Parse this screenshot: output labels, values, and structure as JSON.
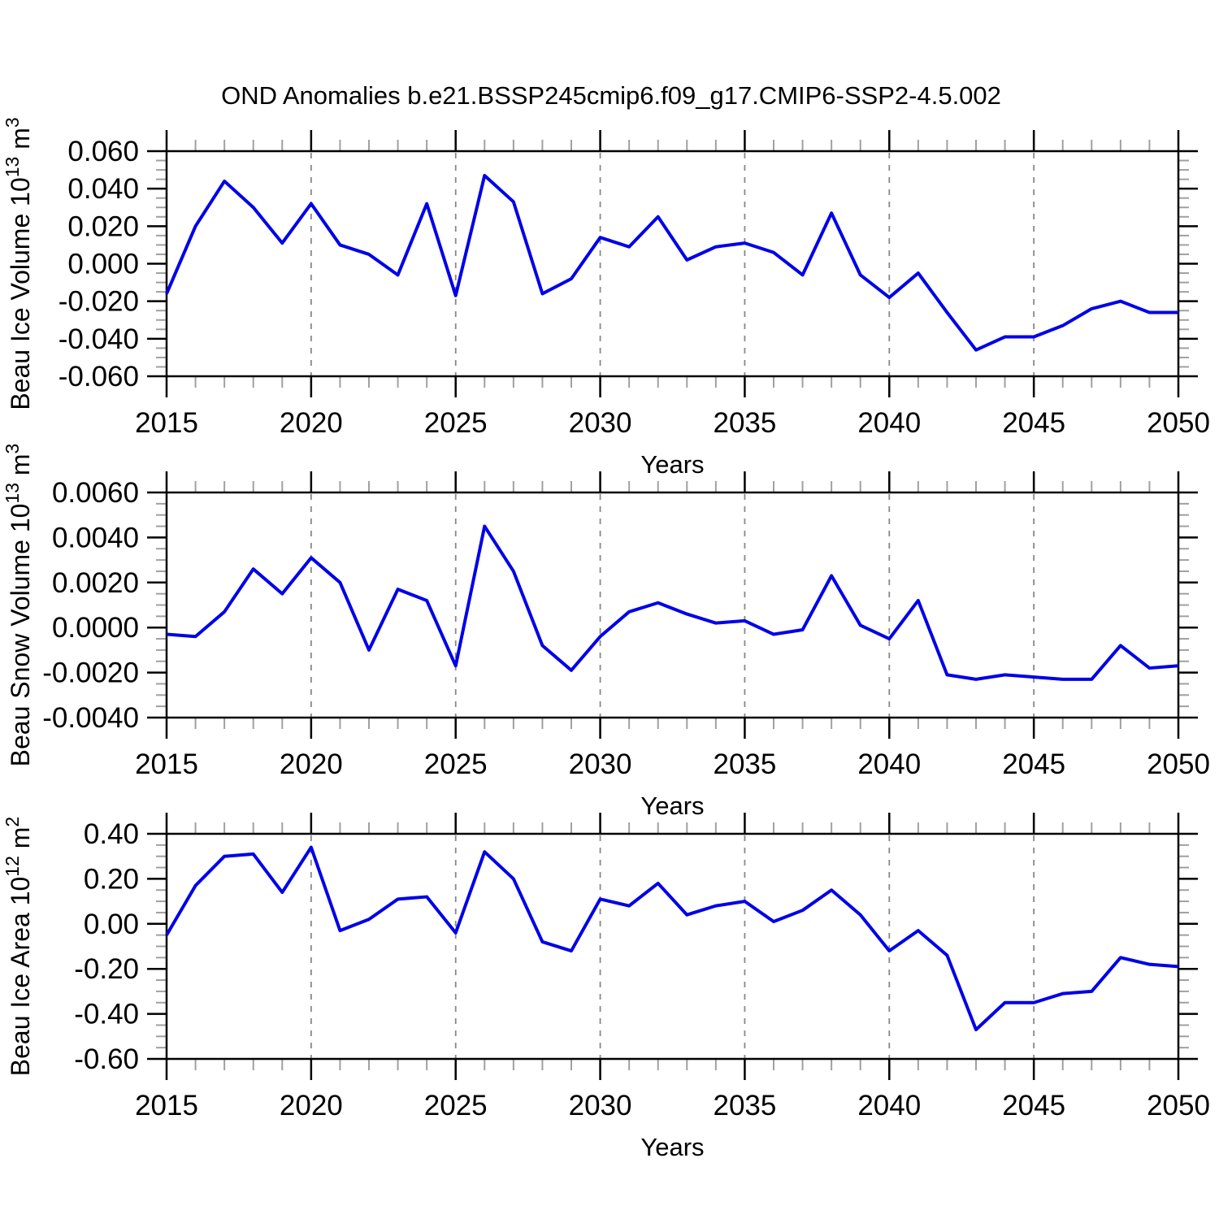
{
  "title": "OND Anomalies b.e21.BSSP245cmip6.f09_g17.CMIP6-SSP2-4.5.002",
  "colors": {
    "line": "#0000e8",
    "frame": "#000000",
    "major_tick": "#000000",
    "minor_tick": "#a0a0a0",
    "grid": "#888888",
    "text": "#000000",
    "background": "#ffffff"
  },
  "x_axis": {
    "label": "Years",
    "min": 2015,
    "max": 2050,
    "major_tick_step": 5,
    "minor_tick_step": 1,
    "tick_labels": [
      "2015",
      "2020",
      "2025",
      "2030",
      "2035",
      "2040",
      "2045",
      "2050"
    ],
    "grid_line_years": [
      2020,
      2025,
      2030,
      2035,
      2040,
      2045
    ]
  },
  "chart_data": [
    {
      "type": "line",
      "name": "beau-ice-volume",
      "ylabel": {
        "text": "Beau Ice Volume 10",
        "exp": "13",
        "unit": "m",
        "unit_exp": "3"
      },
      "y_axis": {
        "min": -0.06,
        "max": 0.06,
        "major_step": 0.02,
        "minor_step": 0.005,
        "tick_labels": [
          "0.060",
          "0.040",
          "0.020",
          "0.000",
          "-0.020",
          "-0.040",
          "-0.060"
        ]
      },
      "x": [
        2015,
        2016,
        2017,
        2018,
        2019,
        2020,
        2021,
        2022,
        2023,
        2024,
        2025,
        2026,
        2027,
        2028,
        2029,
        2030,
        2031,
        2032,
        2033,
        2034,
        2035,
        2036,
        2037,
        2038,
        2039,
        2040,
        2041,
        2042,
        2043,
        2044,
        2045,
        2046,
        2047,
        2048,
        2049,
        2050
      ],
      "values": [
        -0.016,
        0.02,
        0.044,
        0.03,
        0.011,
        0.032,
        0.01,
        0.005,
        -0.006,
        0.032,
        -0.017,
        0.047,
        0.033,
        -0.016,
        -0.008,
        0.014,
        0.009,
        0.025,
        0.002,
        0.009,
        0.011,
        0.006,
        -0.006,
        0.027,
        -0.006,
        -0.018,
        -0.005,
        -0.026,
        -0.046,
        -0.039,
        -0.039,
        -0.033,
        -0.024,
        -0.02,
        -0.026,
        -0.026
      ]
    },
    {
      "type": "line",
      "name": "beau-snow-volume",
      "ylabel": {
        "text": "Beau Snow Volume 10",
        "exp": "13",
        "unit": "m",
        "unit_exp": "3"
      },
      "y_axis": {
        "min": -0.004,
        "max": 0.006,
        "major_step": 0.002,
        "minor_step": 0.0005,
        "tick_labels": [
          "0.0060",
          "0.0040",
          "0.0020",
          "0.0000",
          "-0.0020",
          "-0.0040"
        ]
      },
      "x": [
        2015,
        2016,
        2017,
        2018,
        2019,
        2020,
        2021,
        2022,
        2023,
        2024,
        2025,
        2026,
        2027,
        2028,
        2029,
        2030,
        2031,
        2032,
        2033,
        2034,
        2035,
        2036,
        2037,
        2038,
        2039,
        2040,
        2041,
        2042,
        2043,
        2044,
        2045,
        2046,
        2047,
        2048,
        2049,
        2050
      ],
      "values": [
        -0.0003,
        -0.0004,
        0.0007,
        0.0026,
        0.0015,
        0.0031,
        0.002,
        -0.001,
        0.0017,
        0.0012,
        -0.0017,
        0.0045,
        0.0025,
        -0.0008,
        -0.0019,
        -0.0004,
        0.0007,
        0.0011,
        0.0006,
        0.0002,
        0.0003,
        -0.0003,
        -0.0001,
        0.0023,
        0.0001,
        -0.0005,
        0.0012,
        -0.0021,
        -0.0023,
        -0.0021,
        -0.0022,
        -0.0023,
        -0.0023,
        -0.0008,
        -0.0018,
        -0.0017
      ]
    },
    {
      "type": "line",
      "name": "beau-ice-area",
      "ylabel": {
        "text": "Beau Ice Area 10",
        "exp": "12",
        "unit": "m",
        "unit_exp": "2"
      },
      "y_axis": {
        "min": -0.6,
        "max": 0.4,
        "major_step": 0.2,
        "minor_step": 0.05,
        "tick_labels": [
          "0.40",
          "0.20",
          "0.00",
          "-0.20",
          "-0.40",
          "-0.60"
        ]
      },
      "x": [
        2015,
        2016,
        2017,
        2018,
        2019,
        2020,
        2021,
        2022,
        2023,
        2024,
        2025,
        2026,
        2027,
        2028,
        2029,
        2030,
        2031,
        2032,
        2033,
        2034,
        2035,
        2036,
        2037,
        2038,
        2039,
        2040,
        2041,
        2042,
        2043,
        2044,
        2045,
        2046,
        2047,
        2048,
        2049,
        2050
      ],
      "values": [
        -0.05,
        0.17,
        0.3,
        0.31,
        0.14,
        0.34,
        -0.03,
        0.02,
        0.11,
        0.12,
        -0.04,
        0.32,
        0.2,
        -0.08,
        -0.12,
        0.11,
        0.08,
        0.18,
        0.04,
        0.08,
        0.1,
        0.01,
        0.06,
        0.15,
        0.04,
        -0.12,
        -0.03,
        -0.14,
        -0.47,
        -0.35,
        -0.35,
        -0.31,
        -0.3,
        -0.15,
        -0.18,
        -0.19
      ]
    }
  ]
}
